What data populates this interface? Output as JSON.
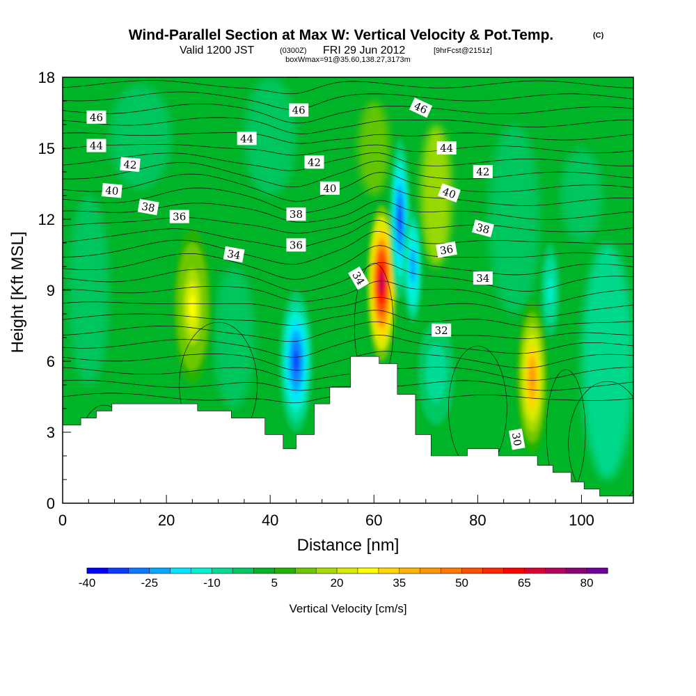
{
  "title": {
    "main": "Wind-Parallel Section at Max W: Vertical Velocity & Pot.Temp.",
    "copyright": "(C)",
    "valid_prefix": "Valid 1200 JST",
    "utc": "(0300Z)",
    "date": "FRI 29 Jun 2012",
    "forecast": "[9hrFcst@2151z]",
    "box_info": "boxWmax=91@35.60,138.27,3173m"
  },
  "chart_data": {
    "type": "heatmap",
    "xlabel": "Distance [nm]",
    "ylabel": "Height [Kft MSL]",
    "xlim": [
      0,
      110
    ],
    "ylim": [
      0,
      18
    ],
    "x_ticks": [
      0,
      20,
      40,
      60,
      80,
      100
    ],
    "y_ticks": [
      0,
      3,
      6,
      9,
      12,
      15,
      18
    ],
    "colorbar": {
      "title": "Vertical Velocity [cm/s]",
      "tick_labels": [
        "-40",
        "-25",
        "-10",
        "5",
        "20",
        "35",
        "50",
        "65",
        "80"
      ],
      "levels": [
        -40,
        -35,
        -30,
        -25,
        -20,
        -15,
        -10,
        -5,
        0,
        5,
        10,
        15,
        20,
        25,
        30,
        35,
        40,
        45,
        50,
        55,
        60,
        65,
        70,
        75,
        80,
        85
      ],
      "colors": [
        "#0000ff",
        "#0a3cff",
        "#0a78ff",
        "#00a8ff",
        "#00e4ff",
        "#00f0d0",
        "#00dc96",
        "#00c864",
        "#00b428",
        "#22b400",
        "#6ec800",
        "#a8dc00",
        "#d8ec00",
        "#ffff00",
        "#ffd800",
        "#ffb400",
        "#ff9600",
        "#ff7800",
        "#ff5000",
        "#ff2800",
        "#ff0000",
        "#dc0032",
        "#b4005a",
        "#8c0078",
        "#6e0096"
      ]
    },
    "velocity_cells": [
      {
        "x": 25,
        "y": 8.3,
        "w": 26,
        "region": "updraft"
      },
      {
        "x": 45,
        "y": 6.0,
        "w": -34,
        "region": "downdraft"
      },
      {
        "x": 61.5,
        "y": 9.3,
        "w": 72,
        "region": "updraft"
      },
      {
        "x": 65,
        "y": 12.0,
        "w": -35,
        "region": "downdraft"
      },
      {
        "x": 67.5,
        "y": 10.0,
        "w": -24,
        "region": "downdraft"
      },
      {
        "x": 90.5,
        "y": 5.3,
        "w": 42,
        "region": "updraft"
      },
      {
        "x": 94,
        "y": 9.0,
        "w": -12,
        "region": "downdraft"
      },
      {
        "x": 72,
        "y": 5.5,
        "w": -10,
        "region": "downdraft"
      }
    ],
    "terrain": [
      {
        "x": 0,
        "h": 3.3
      },
      {
        "x": 3.5,
        "h": 3.6
      },
      {
        "x": 6.5,
        "h": 3.9
      },
      {
        "x": 9.5,
        "h": 4.2
      },
      {
        "x": 26,
        "h": 3.9
      },
      {
        "x": 32.5,
        "h": 3.6
      },
      {
        "x": 39,
        "h": 2.9
      },
      {
        "x": 42.5,
        "h": 2.3
      },
      {
        "x": 45,
        "h": 2.9
      },
      {
        "x": 48.5,
        "h": 4.2
      },
      {
        "x": 51.5,
        "h": 4.9
      },
      {
        "x": 55.5,
        "h": 6.2
      },
      {
        "x": 61,
        "h": 5.9
      },
      {
        "x": 64.5,
        "h": 4.6
      },
      {
        "x": 68,
        "h": 2.9
      },
      {
        "x": 71,
        "h": 2.0
      },
      {
        "x": 78,
        "h": 2.3
      },
      {
        "x": 84,
        "h": 2.0
      },
      {
        "x": 90,
        "h": 2.0
      },
      {
        "x": 91.5,
        "h": 1.6
      },
      {
        "x": 94.5,
        "h": 1.3
      },
      {
        "x": 98,
        "h": 0.9
      },
      {
        "x": 100.5,
        "h": 0.6
      },
      {
        "x": 103.5,
        "h": 0.3
      },
      {
        "x": 110,
        "h": 0.3
      }
    ],
    "theta_contour_labels": [
      {
        "text": "46",
        "x": 6.5,
        "y": 16.3,
        "rot": 0
      },
      {
        "text": "46",
        "x": 45.5,
        "y": 16.6,
        "rot": 0
      },
      {
        "text": "46",
        "x": 69,
        "y": 16.7,
        "rot": 25
      },
      {
        "text": "44",
        "x": 6.5,
        "y": 15.1,
        "rot": 0
      },
      {
        "text": "44",
        "x": 35.5,
        "y": 15.4,
        "rot": 0
      },
      {
        "text": "44",
        "x": 74,
        "y": 15.0,
        "rot": 0
      },
      {
        "text": "42",
        "x": 13,
        "y": 14.3,
        "rot": 5
      },
      {
        "text": "42",
        "x": 48.5,
        "y": 14.4,
        "rot": 0
      },
      {
        "text": "42",
        "x": 81,
        "y": 14.0,
        "rot": 0
      },
      {
        "text": "40",
        "x": 9.5,
        "y": 13.2,
        "rot": 5
      },
      {
        "text": "40",
        "x": 51.5,
        "y": 13.3,
        "rot": 0
      },
      {
        "text": "40",
        "x": 74.5,
        "y": 13.1,
        "rot": 20
      },
      {
        "text": "38",
        "x": 16.5,
        "y": 12.5,
        "rot": 10
      },
      {
        "text": "38",
        "x": 45,
        "y": 12.2,
        "rot": 0
      },
      {
        "text": "38",
        "x": 81,
        "y": 11.6,
        "rot": 15
      },
      {
        "text": "36",
        "x": 22.5,
        "y": 12.1,
        "rot": 0
      },
      {
        "text": "36",
        "x": 45,
        "y": 10.9,
        "rot": 0
      },
      {
        "text": "36",
        "x": 74,
        "y": 10.7,
        "rot": -10
      },
      {
        "text": "34",
        "x": 33,
        "y": 10.5,
        "rot": 10
      },
      {
        "text": "34",
        "x": 57,
        "y": 9.5,
        "rot": 60
      },
      {
        "text": "34",
        "x": 81,
        "y": 9.5,
        "rot": 0
      },
      {
        "text": "32",
        "x": 73,
        "y": 7.3,
        "rot": 0
      },
      {
        "text": "30",
        "x": 87.5,
        "y": 2.7,
        "rot": 80
      }
    ]
  }
}
